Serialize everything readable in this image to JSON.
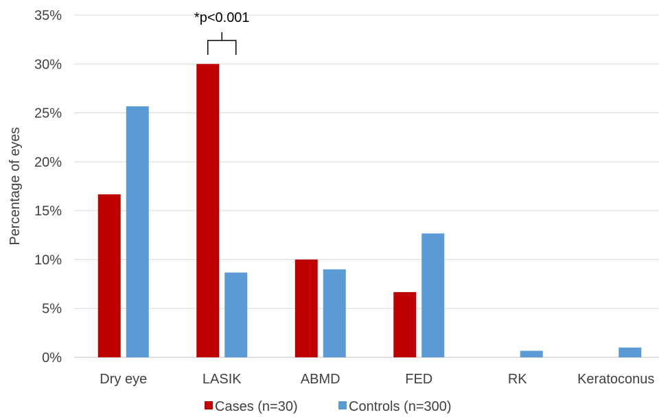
{
  "chart_data": {
    "type": "bar",
    "categories": [
      "Dry eye",
      "LASIK",
      "ABMD",
      "FED",
      "RK",
      "Keratoconus"
    ],
    "series": [
      {
        "name": "Cases (n=30)",
        "color": "#C00000",
        "values": [
          16.67,
          30.0,
          10.0,
          6.67,
          0,
          0
        ]
      },
      {
        "name": "Controls (n=300)",
        "color": "#5B9BD5",
        "values": [
          25.67,
          8.67,
          9.0,
          12.67,
          0.67,
          1.0
        ]
      }
    ],
    "ylabel": "Percentage of eyes",
    "ylim": [
      0,
      35
    ],
    "yticks": [
      "0%",
      "5%",
      "10%",
      "15%",
      "20%",
      "25%",
      "30%",
      "35%"
    ],
    "grid": true,
    "legend_position": "bottom",
    "annotation": {
      "text": "*p<0.001",
      "category": "LASIK"
    }
  }
}
